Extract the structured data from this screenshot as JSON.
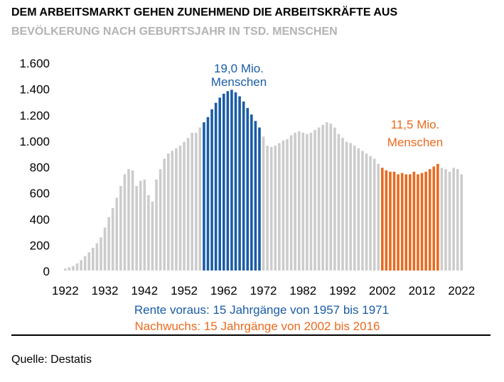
{
  "title": "DEM ARBEITSMARKT GEHEN ZUNEHMEND DIE ARBEITSKRÄFTE AUS",
  "subtitle": "BEVÖLKERUNG NACH GEBURTSJAHR IN TSD. MENSCHEN",
  "source": "Quelle: Destatis",
  "colors": {
    "default": "#cccccc",
    "rente": "#1a5ca6",
    "nachwuchs": "#ea6a1e"
  },
  "annotations": {
    "rente_line1": "19,0 Mio.",
    "rente_line2": "Menschen",
    "nachwuchs_line1": "11,5 Mio.",
    "nachwuchs_line2": "Menschen"
  },
  "legend": {
    "rente": "Rente voraus: 15 Jahrgänge von 1957 bis 1971",
    "nachwuchs": "Nachwuchs: 15 Jahrgänge von 2002 bis 2016"
  },
  "chart_data": {
    "type": "bar",
    "ylim": [
      0,
      1600
    ],
    "yticks": [
      0,
      200,
      400,
      600,
      800,
      1000,
      1200,
      1400,
      1600
    ],
    "ytick_labels": [
      "0",
      "200",
      "400",
      "600",
      "800",
      "1.000",
      "1.200",
      "1.400",
      "1.600"
    ],
    "xticks": [
      1922,
      1932,
      1942,
      1952,
      1962,
      1972,
      1982,
      1992,
      2002,
      2012,
      2022
    ],
    "x": [
      1922,
      1923,
      1924,
      1925,
      1926,
      1927,
      1928,
      1929,
      1930,
      1931,
      1932,
      1933,
      1934,
      1935,
      1936,
      1937,
      1938,
      1939,
      1940,
      1941,
      1942,
      1943,
      1944,
      1945,
      1946,
      1947,
      1948,
      1949,
      1950,
      1951,
      1952,
      1953,
      1954,
      1955,
      1956,
      1957,
      1958,
      1959,
      1960,
      1961,
      1962,
      1963,
      1964,
      1965,
      1966,
      1967,
      1968,
      1969,
      1970,
      1971,
      1972,
      1973,
      1974,
      1975,
      1976,
      1977,
      1978,
      1979,
      1980,
      1981,
      1982,
      1983,
      1984,
      1985,
      1986,
      1987,
      1988,
      1989,
      1990,
      1991,
      1992,
      1993,
      1994,
      1995,
      1996,
      1997,
      1998,
      1999,
      2000,
      2001,
      2002,
      2003,
      2004,
      2005,
      2006,
      2007,
      2008,
      2009,
      2010,
      2011,
      2012,
      2013,
      2014,
      2015,
      2016,
      2017,
      2018,
      2019,
      2020,
      2021,
      2022
    ],
    "values": [
      15,
      25,
      35,
      55,
      80,
      110,
      140,
      175,
      210,
      255,
      330,
      410,
      480,
      560,
      650,
      740,
      780,
      770,
      650,
      690,
      700,
      580,
      530,
      700,
      780,
      860,
      900,
      920,
      940,
      960,
      990,
      1020,
      1060,
      1060,
      1100,
      1140,
      1180,
      1240,
      1290,
      1330,
      1360,
      1380,
      1390,
      1370,
      1340,
      1300,
      1250,
      1200,
      1150,
      1100,
      1030,
      960,
      950,
      960,
      980,
      1000,
      1010,
      1040,
      1060,
      1070,
      1060,
      1050,
      1060,
      1080,
      1100,
      1120,
      1140,
      1130,
      1100,
      1050,
      1020,
      990,
      980,
      960,
      940,
      920,
      900,
      880,
      860,
      820,
      790,
      770,
      760,
      760,
      740,
      750,
      740,
      740,
      760,
      740,
      750,
      760,
      780,
      800,
      820,
      790,
      780,
      760,
      790,
      780,
      740
    ],
    "highlights": [
      {
        "name": "Rente voraus",
        "from": 1957,
        "to": 1971
      },
      {
        "name": "Nachwuchs",
        "from": 2002,
        "to": 2016
      }
    ]
  }
}
